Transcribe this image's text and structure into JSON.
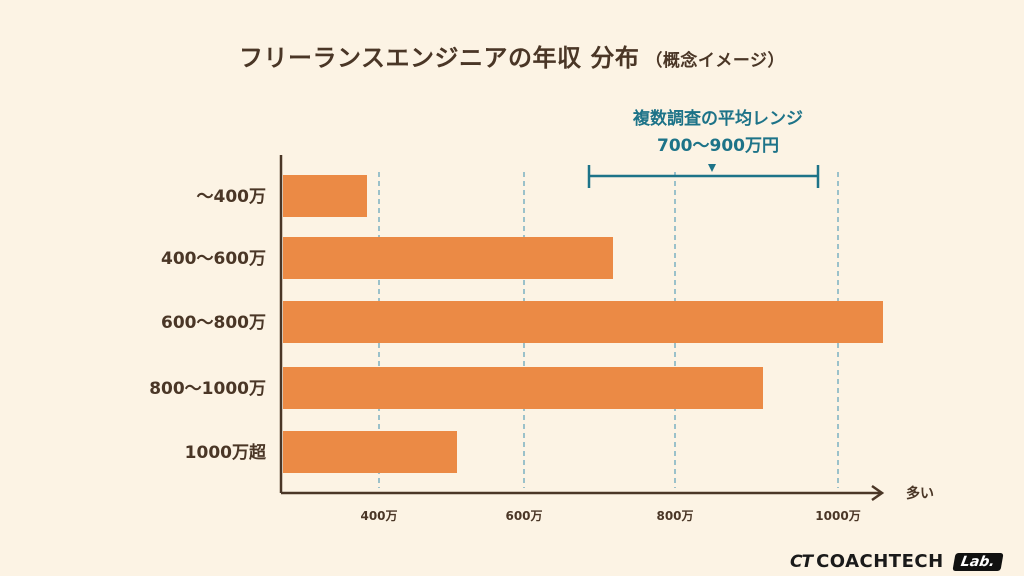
{
  "title": "フリーランスエンジニアの年収 分布",
  "subtitle": "（概念イメージ）",
  "annotation": {
    "line1": "複数調査の平均レンジ",
    "line2": "700〜900万円",
    "range": [
      700,
      900
    ]
  },
  "axis_end_label": "多い",
  "colors": {
    "bar": "#eb8a45",
    "axis": "#4a3626",
    "accent": "#1d7388",
    "grid": "#3a8fb0"
  },
  "brand": {
    "mark": "CT",
    "name": "COACHTECH",
    "badge": "Lab."
  },
  "chart_data": {
    "type": "bar",
    "orientation": "horizontal",
    "categories": [
      "〜400万",
      "400〜600万",
      "600〜800万",
      "800〜1000万",
      "1000万超"
    ],
    "values": [
      0.14,
      0.55,
      1.0,
      0.8,
      0.29
    ],
    "title": "フリーランスエンジニアの年収 分布",
    "xlabel": "多い",
    "ylabel": "",
    "xticks": [
      "400万",
      "600万",
      "800万",
      "1000万"
    ],
    "grid": "vertical dashed"
  }
}
